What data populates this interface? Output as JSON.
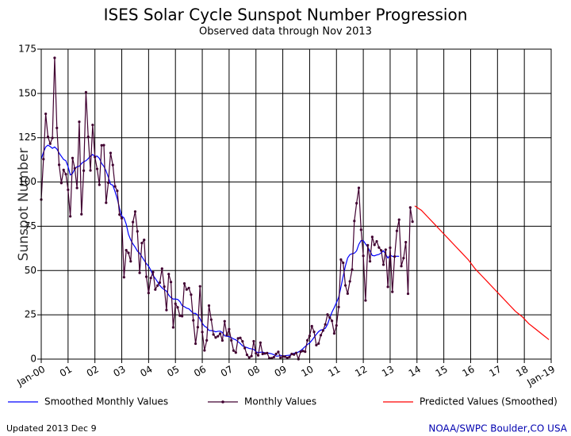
{
  "chart_data": {
    "type": "line",
    "title": "ISES Solar Cycle Sunspot Number Progression",
    "subtitle": "Observed data through Nov 2013",
    "y_label": "Sunspot Number",
    "footer_left": "Updated 2013 Dec  9",
    "footer_right": "NOAA/SWPC Boulder,CO USA",
    "grid": true,
    "xlim": [
      "2000-01",
      "2019-01"
    ],
    "xticks": [
      {
        "value": "2000-01",
        "label": "Jan-00"
      },
      {
        "value": "2001-01",
        "label": "01"
      },
      {
        "value": "2002-01",
        "label": "02"
      },
      {
        "value": "2003-01",
        "label": "03"
      },
      {
        "value": "2004-01",
        "label": "04"
      },
      {
        "value": "2005-01",
        "label": "05"
      },
      {
        "value": "2006-01",
        "label": "06"
      },
      {
        "value": "2007-01",
        "label": "07"
      },
      {
        "value": "2008-01",
        "label": "08"
      },
      {
        "value": "2009-01",
        "label": "09"
      },
      {
        "value": "2010-01",
        "label": "10"
      },
      {
        "value": "2011-01",
        "label": "11"
      },
      {
        "value": "2012-01",
        "label": "12"
      },
      {
        "value": "2013-01",
        "label": "13"
      },
      {
        "value": "2014-01",
        "label": "14"
      },
      {
        "value": "2015-01",
        "label": "15"
      },
      {
        "value": "2016-01",
        "label": "16"
      },
      {
        "value": "2017-01",
        "label": "17"
      },
      {
        "value": "2018-01",
        "label": "18"
      },
      {
        "value": "2019-01",
        "label": "Jan-19"
      }
    ],
    "ylim": [
      0,
      175
    ],
    "yticks": [
      0,
      25,
      50,
      75,
      100,
      125,
      150,
      175
    ],
    "series": [
      {
        "name": "Smoothed Monthly Values",
        "color": "#0000ff",
        "marker": false,
        "x": [
          "2000-01",
          "2000-02",
          "2000-03",
          "2000-04",
          "2000-05",
          "2000-06",
          "2000-07",
          "2000-08",
          "2000-09",
          "2000-10",
          "2000-11",
          "2000-12",
          "2001-01",
          "2001-02",
          "2001-03",
          "2001-04",
          "2001-05",
          "2001-06",
          "2001-07",
          "2001-08",
          "2001-09",
          "2001-10",
          "2001-11",
          "2001-12",
          "2002-01",
          "2002-02",
          "2002-03",
          "2002-04",
          "2002-05",
          "2002-06",
          "2002-07",
          "2002-08",
          "2002-09",
          "2002-10",
          "2002-11",
          "2002-12",
          "2003-01",
          "2003-02",
          "2003-03",
          "2003-04",
          "2003-05",
          "2003-06",
          "2003-07",
          "2003-08",
          "2003-09",
          "2003-10",
          "2003-11",
          "2003-12",
          "2004-01",
          "2004-02",
          "2004-03",
          "2004-04",
          "2004-05",
          "2004-06",
          "2004-07",
          "2004-08",
          "2004-09",
          "2004-10",
          "2004-11",
          "2004-12",
          "2005-01",
          "2005-02",
          "2005-03",
          "2005-04",
          "2005-05",
          "2005-06",
          "2005-07",
          "2005-08",
          "2005-09",
          "2005-10",
          "2005-11",
          "2005-12",
          "2006-01",
          "2006-02",
          "2006-03",
          "2006-04",
          "2006-05",
          "2006-06",
          "2006-07",
          "2006-08",
          "2006-09",
          "2006-10",
          "2006-11",
          "2006-12",
          "2007-01",
          "2007-02",
          "2007-03",
          "2007-04",
          "2007-05",
          "2007-06",
          "2007-07",
          "2007-08",
          "2007-09",
          "2007-10",
          "2007-11",
          "2007-12",
          "2008-01",
          "2008-02",
          "2008-03",
          "2008-04",
          "2008-05",
          "2008-06",
          "2008-07",
          "2008-08",
          "2008-09",
          "2008-10",
          "2008-11",
          "2008-12",
          "2009-01",
          "2009-02",
          "2009-03",
          "2009-04",
          "2009-05",
          "2009-06",
          "2009-07",
          "2009-08",
          "2009-09",
          "2009-10",
          "2009-11",
          "2009-12",
          "2010-01",
          "2010-02",
          "2010-03",
          "2010-04",
          "2010-05",
          "2010-06",
          "2010-07",
          "2010-08",
          "2010-09",
          "2010-10",
          "2010-11",
          "2010-12",
          "2011-01",
          "2011-02",
          "2011-03",
          "2011-04",
          "2011-05",
          "2011-06",
          "2011-07",
          "2011-08",
          "2011-09",
          "2011-10",
          "2011-11",
          "2011-12",
          "2012-01",
          "2012-02",
          "2012-03",
          "2012-04",
          "2012-05",
          "2012-06",
          "2012-07",
          "2012-08",
          "2012-09",
          "2012-10",
          "2012-11",
          "2012-12",
          "2013-01",
          "2013-02",
          "2013-03",
          "2013-04",
          "2013-05"
        ],
        "values": [
          112.9,
          116.8,
          119.8,
          120.8,
          120.0,
          119.0,
          119.8,
          118.6,
          116.3,
          114.5,
          112.7,
          112.0,
          108.7,
          104.0,
          104.8,
          107.5,
          108.6,
          108.9,
          110.4,
          111.5,
          112.0,
          113.2,
          114.6,
          115.5,
          114.4,
          114.6,
          113.3,
          110.5,
          108.8,
          106.2,
          102.7,
          98.7,
          98.2,
          94.6,
          90.5,
          85.2,
          80.8,
          79.7,
          76.2,
          70.5,
          67.3,
          65.0,
          63.2,
          61.0,
          59.8,
          57.8,
          55.8,
          53.9,
          52.5,
          50.2,
          47.2,
          45.5,
          43.6,
          41.6,
          40.2,
          39.2,
          38.4,
          36.2,
          34.7,
          33.9,
          33.9,
          33.7,
          32.5,
          30.2,
          29.6,
          28.8,
          28.4,
          27.1,
          25.9,
          25.8,
          24.7,
          22.7,
          20.2,
          18.6,
          17.8,
          16.2,
          16.1,
          15.9,
          15.4,
          15.7,
          15.8,
          15.0,
          13.1,
          12.9,
          12.7,
          12.1,
          11.4,
          10.9,
          9.8,
          8.8,
          7.5,
          6.9,
          6.5,
          6.0,
          5.8,
          5.5,
          4.2,
          3.6,
          3.9,
          4.0,
          3.5,
          3.3,
          3.3,
          3.0,
          2.5,
          1.7,
          1.7,
          2.2,
          1.8,
          1.9,
          2.1,
          2.2,
          2.7,
          3.3,
          3.6,
          4.0,
          4.8,
          5.9,
          7.1,
          8.2,
          9.1,
          10.6,
          12.3,
          14.0,
          15.5,
          16.4,
          16.7,
          17.4,
          19.6,
          23.2,
          26.5,
          29.1,
          31.9,
          34.9,
          40.7,
          46.8,
          52.6,
          57.1,
          59.0,
          59.5,
          59.8,
          61.1,
          64.8,
          66.9,
          66.9,
          65.0,
          63.2,
          61.0,
          58.5,
          58.3,
          58.8,
          59.1,
          60.0,
          61.2,
          59.2,
          57.1,
          58.7,
          58.0,
          57.9,
          58.1,
          58.0
        ]
      },
      {
        "name": "Monthly Values",
        "color": "#400030",
        "marker": true,
        "x": [
          "2000-01",
          "2000-02",
          "2000-03",
          "2000-04",
          "2000-05",
          "2000-06",
          "2000-07",
          "2000-08",
          "2000-09",
          "2000-10",
          "2000-11",
          "2000-12",
          "2001-01",
          "2001-02",
          "2001-03",
          "2001-04",
          "2001-05",
          "2001-06",
          "2001-07",
          "2001-08",
          "2001-09",
          "2001-10",
          "2001-11",
          "2001-12",
          "2002-01",
          "2002-02",
          "2002-03",
          "2002-04",
          "2002-05",
          "2002-06",
          "2002-07",
          "2002-08",
          "2002-09",
          "2002-10",
          "2002-11",
          "2002-12",
          "2003-01",
          "2003-02",
          "2003-03",
          "2003-04",
          "2003-05",
          "2003-06",
          "2003-07",
          "2003-08",
          "2003-09",
          "2003-10",
          "2003-11",
          "2003-12",
          "2004-01",
          "2004-02",
          "2004-03",
          "2004-04",
          "2004-05",
          "2004-06",
          "2004-07",
          "2004-08",
          "2004-09",
          "2004-10",
          "2004-11",
          "2004-12",
          "2005-01",
          "2005-02",
          "2005-03",
          "2005-04",
          "2005-05",
          "2005-06",
          "2005-07",
          "2005-08",
          "2005-09",
          "2005-10",
          "2005-11",
          "2005-12",
          "2006-01",
          "2006-02",
          "2006-03",
          "2006-04",
          "2006-05",
          "2006-06",
          "2006-07",
          "2006-08",
          "2006-09",
          "2006-10",
          "2006-11",
          "2006-12",
          "2007-01",
          "2007-02",
          "2007-03",
          "2007-04",
          "2007-05",
          "2007-06",
          "2007-07",
          "2007-08",
          "2007-09",
          "2007-10",
          "2007-11",
          "2007-12",
          "2008-01",
          "2008-02",
          "2008-03",
          "2008-04",
          "2008-05",
          "2008-06",
          "2008-07",
          "2008-08",
          "2008-09",
          "2008-10",
          "2008-11",
          "2008-12",
          "2009-01",
          "2009-02",
          "2009-03",
          "2009-04",
          "2009-05",
          "2009-06",
          "2009-07",
          "2009-08",
          "2009-09",
          "2009-10",
          "2009-11",
          "2009-12",
          "2010-01",
          "2010-02",
          "2010-03",
          "2010-04",
          "2010-05",
          "2010-06",
          "2010-07",
          "2010-08",
          "2010-09",
          "2010-10",
          "2010-11",
          "2010-12",
          "2011-01",
          "2011-02",
          "2011-03",
          "2011-04",
          "2011-05",
          "2011-06",
          "2011-07",
          "2011-08",
          "2011-09",
          "2011-10",
          "2011-11",
          "2011-12",
          "2012-01",
          "2012-02",
          "2012-03",
          "2012-04",
          "2012-05",
          "2012-06",
          "2012-07",
          "2012-08",
          "2012-09",
          "2012-10",
          "2012-11",
          "2012-12",
          "2013-01",
          "2013-02",
          "2013-03",
          "2013-04",
          "2013-05",
          "2013-06",
          "2013-07",
          "2013-08",
          "2013-09",
          "2013-10",
          "2013-11"
        ],
        "values": [
          90.1,
          112.9,
          138.5,
          125.5,
          121.6,
          124.9,
          170.1,
          130.5,
          109.7,
          99.4,
          106.8,
          104.4,
          95.6,
          80.6,
          113.5,
          107.7,
          96.6,
          134.0,
          81.8,
          106.4,
          150.7,
          125.5,
          106.5,
          132.2,
          114.1,
          107.4,
          98.4,
          120.7,
          120.8,
          88.3,
          99.6,
          116.4,
          109.6,
          97.5,
          95.0,
          81.6,
          79.5,
          46.2,
          61.5,
          60.0,
          55.2,
          77.4,
          83.3,
          72.1,
          48.7,
          65.5,
          67.3,
          46.5,
          37.3,
          45.8,
          49.1,
          39.3,
          41.5,
          43.2,
          51.1,
          40.9,
          27.7,
          48.0,
          43.5,
          17.9,
          31.3,
          29.2,
          24.5,
          24.2,
          42.7,
          39.3,
          40.1,
          36.4,
          21.9,
          8.7,
          18.0,
          41.1,
          15.3,
          4.9,
          10.6,
          30.2,
          22.3,
          13.9,
          12.2,
          12.9,
          14.4,
          10.5,
          21.4,
          13.6,
          16.9,
          10.6,
          4.8,
          3.7,
          11.7,
          12.0,
          10.0,
          6.2,
          2.4,
          0.9,
          1.7,
          10.1,
          3.3,
          2.1,
          9.3,
          2.9,
          3.2,
          3.4,
          0.5,
          0.5,
          1.1,
          2.9,
          4.1,
          0.8,
          1.5,
          1.4,
          0.7,
          1.2,
          2.9,
          2.6,
          3.5,
          0.0,
          4.2,
          4.6,
          4.2,
          10.6,
          13.1,
          18.6,
          15.4,
          7.9,
          8.8,
          13.5,
          16.1,
          19.6,
          25.2,
          23.5,
          21.6,
          14.5,
          19.0,
          29.4,
          56.2,
          54.4,
          41.6,
          37.0,
          43.9,
          50.6,
          78.0,
          88.0,
          96.7,
          73.0,
          58.3,
          33.1,
          64.3,
          55.2,
          69.0,
          64.5,
          66.5,
          63.0,
          61.4,
          53.3,
          61.8,
          40.8,
          62.9,
          38.0,
          57.9,
          72.4,
          78.7,
          52.5,
          57.0,
          66.0,
          36.9,
          85.6,
          77.6
        ]
      },
      {
        "name": "Predicted Values (Smoothed)",
        "color": "#ff0000",
        "marker": false,
        "x": [
          "2013-12",
          "2014-03",
          "2014-06",
          "2014-09",
          "2014-12",
          "2015-03",
          "2015-06",
          "2015-09",
          "2015-12",
          "2016-03",
          "2016-06",
          "2016-09",
          "2016-12",
          "2017-03",
          "2017-06",
          "2017-09",
          "2017-12",
          "2018-03",
          "2018-06",
          "2018-09",
          "2018-12"
        ],
        "values": [
          86.5,
          84,
          80,
          76,
          72,
          68,
          64,
          60,
          56,
          51,
          47,
          43,
          39,
          35,
          31,
          27,
          24,
          20,
          17,
          14,
          11
        ]
      }
    ]
  }
}
